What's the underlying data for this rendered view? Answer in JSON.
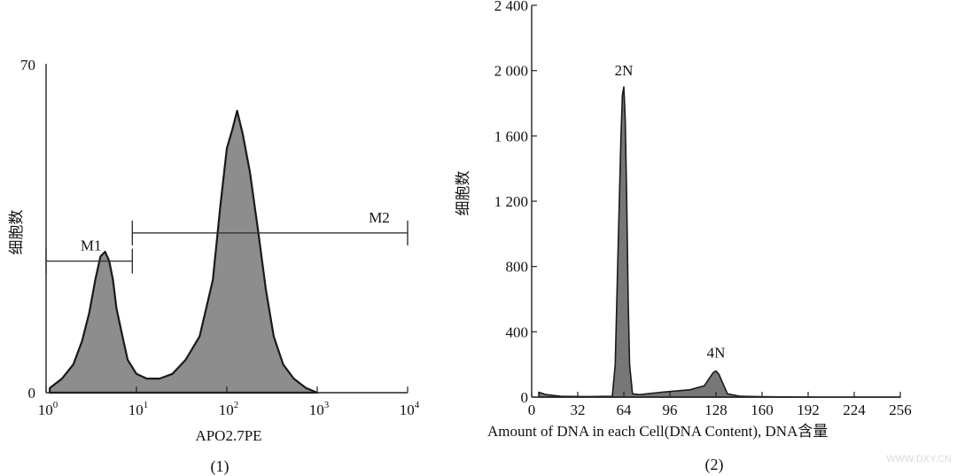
{
  "chart_data": [
    {
      "type": "area",
      "caption": "(1)",
      "xlabel": "APO2.7PE",
      "ylabel": "细胞数",
      "xscale": "log",
      "xlim": [
        1,
        10000
      ],
      "ylim": [
        0,
        70
      ],
      "x_ticks": [
        {
          "base": "10",
          "exp": "0",
          "value": 1
        },
        {
          "base": "10",
          "exp": "1",
          "value": 10
        },
        {
          "base": "10",
          "exp": "2",
          "value": 100
        },
        {
          "base": "10",
          "exp": "3",
          "value": 1000
        },
        {
          "base": "10",
          "exp": "4",
          "value": 10000
        }
      ],
      "y_ticks": [
        "0",
        "70"
      ],
      "series": [
        {
          "x": [
            1.1,
            1.5,
            2,
            2.5,
            3,
            3.5,
            4,
            4.5,
            5,
            5.5,
            6,
            7,
            8,
            10,
            13,
            18,
            25,
            35,
            50,
            70,
            85,
            100,
            115,
            130,
            150,
            180,
            220,
            270,
            330,
            420,
            550,
            750,
            1000
          ],
          "y": [
            1,
            3,
            6,
            11,
            17,
            24,
            29,
            30,
            28,
            24,
            18,
            12,
            7,
            4,
            3,
            3,
            4,
            7,
            12,
            24,
            40,
            52,
            56,
            60,
            55,
            47,
            35,
            22,
            12,
            6,
            3,
            1,
            0
          ]
        }
      ],
      "gates": [
        {
          "label": "M1",
          "x_start": 1,
          "x_end": 9,
          "level": 28
        },
        {
          "label": "M2",
          "x_start": 9,
          "x_end": 10000,
          "level": 34
        }
      ]
    },
    {
      "type": "area",
      "caption": "(2)",
      "xlabel": "Amount of DNA in each Cell(DNA Content), DNA含量",
      "ylabel": "细胞数",
      "xlim": [
        0,
        256
      ],
      "ylim": [
        0,
        2400
      ],
      "x_ticks": [
        "0",
        "32",
        "64",
        "96",
        "128",
        "160",
        "192",
        "224",
        "256"
      ],
      "y_ticks": [
        "0",
        "400",
        "800",
        "1 200",
        "1 600",
        "2 000",
        "2 400"
      ],
      "series": [
        {
          "x": [
            5,
            10,
            20,
            40,
            56,
            58,
            60,
            62,
            63,
            64,
            65,
            66,
            67,
            68,
            70,
            75,
            90,
            110,
            120,
            123,
            126,
            128,
            130,
            133,
            136,
            145,
            160,
            200,
            256
          ],
          "y": [
            30,
            15,
            5,
            3,
            5,
            200,
            900,
            1600,
            1850,
            1900,
            1700,
            1200,
            600,
            200,
            20,
            15,
            30,
            45,
            70,
            110,
            150,
            160,
            140,
            80,
            20,
            5,
            2,
            0,
            0
          ]
        }
      ],
      "annotations": [
        {
          "text": "2N",
          "x": 64,
          "y": 1950
        },
        {
          "text": "4N",
          "x": 128,
          "y": 220
        }
      ]
    }
  ],
  "watermark": "WWW.DXY.CN"
}
